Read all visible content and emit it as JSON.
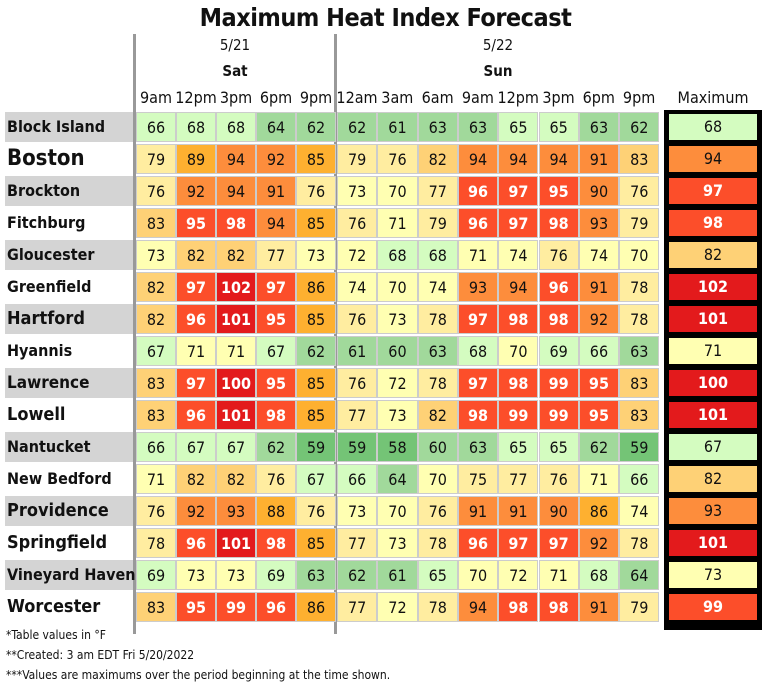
{
  "chart_data": {
    "type": "heatmap",
    "title": "Maximum Heat Index Forecast",
    "days": [
      {
        "date": "5/21",
        "day": "Sat"
      },
      {
        "date": "5/22",
        "day": "Sun"
      }
    ],
    "times": [
      "9am",
      "12pm",
      "3pm",
      "6pm",
      "9pm",
      "12am",
      "3am",
      "6am",
      "9am",
      "12pm",
      "3pm",
      "6pm",
      "9pm"
    ],
    "max_label": "Maximum",
    "rows": [
      {
        "name": "Block Island",
        "values": [
          66,
          68,
          68,
          64,
          62,
          62,
          61,
          63,
          63,
          65,
          65,
          63,
          62
        ],
        "max": 68
      },
      {
        "name": "Boston",
        "values": [
          79,
          89,
          94,
          92,
          85,
          79,
          76,
          82,
          94,
          94,
          94,
          91,
          83
        ],
        "max": 94
      },
      {
        "name": "Brockton",
        "values": [
          76,
          92,
          94,
          91,
          76,
          73,
          70,
          77,
          96,
          97,
          95,
          90,
          76
        ],
        "max": 97
      },
      {
        "name": "Fitchburg",
        "values": [
          83,
          95,
          98,
          94,
          85,
          76,
          71,
          79,
          96,
          97,
          98,
          93,
          79
        ],
        "max": 98
      },
      {
        "name": "Gloucester",
        "values": [
          73,
          82,
          82,
          77,
          73,
          72,
          68,
          68,
          71,
          74,
          76,
          74,
          70
        ],
        "max": 82
      },
      {
        "name": "Greenfield",
        "values": [
          82,
          97,
          102,
          97,
          86,
          74,
          70,
          74,
          93,
          94,
          96,
          91,
          78
        ],
        "max": 102
      },
      {
        "name": "Hartford",
        "values": [
          82,
          96,
          101,
          95,
          85,
          76,
          73,
          78,
          97,
          98,
          98,
          92,
          78
        ],
        "max": 101
      },
      {
        "name": "Hyannis",
        "values": [
          67,
          71,
          71,
          67,
          62,
          61,
          60,
          63,
          68,
          70,
          69,
          66,
          63
        ],
        "max": 71
      },
      {
        "name": "Lawrence",
        "values": [
          83,
          97,
          100,
          95,
          85,
          76,
          72,
          78,
          97,
          98,
          99,
          95,
          83
        ],
        "max": 100
      },
      {
        "name": "Lowell",
        "values": [
          83,
          96,
          101,
          98,
          85,
          77,
          73,
          82,
          98,
          99,
          99,
          95,
          83
        ],
        "max": 101
      },
      {
        "name": "Nantucket",
        "values": [
          66,
          67,
          67,
          62,
          59,
          59,
          58,
          60,
          63,
          65,
          65,
          62,
          59
        ],
        "max": 67
      },
      {
        "name": "New Bedford",
        "values": [
          71,
          82,
          82,
          76,
          67,
          66,
          64,
          70,
          75,
          77,
          76,
          71,
          66
        ],
        "max": 82
      },
      {
        "name": "Providence",
        "values": [
          76,
          92,
          93,
          88,
          76,
          73,
          70,
          76,
          91,
          91,
          90,
          86,
          74
        ],
        "max": 93
      },
      {
        "name": "Springfield",
        "values": [
          78,
          96,
          101,
          98,
          85,
          77,
          73,
          78,
          96,
          97,
          97,
          92,
          78
        ],
        "max": 101
      },
      {
        "name": "Vineyard Haven",
        "values": [
          69,
          73,
          73,
          69,
          63,
          62,
          61,
          65,
          70,
          72,
          71,
          68,
          64
        ],
        "max": 73
      },
      {
        "name": "Worcester",
        "values": [
          83,
          95,
          99,
          96,
          86,
          77,
          72,
          78,
          94,
          98,
          98,
          91,
          79
        ],
        "max": 99
      }
    ],
    "units": "°F"
  },
  "footnotes": [
    "*Table values in °F",
    "**Created: 3 am EDT Fri 5/20/2022",
    "***Values are maximums over the period beginning at the time shown."
  ],
  "colors": {
    "lt60": "#74c476",
    "60-64": "#a1d99b",
    "65-69": "#d4fcc0",
    "70-74": "#ffffb2",
    "75-79": "#ffeda0",
    "80-84": "#fed176",
    "85-89": "#feb030",
    "90-94": "#fd8d3c",
    "95-99": "#fc4e2a",
    "100+": "#e31a1c"
  }
}
